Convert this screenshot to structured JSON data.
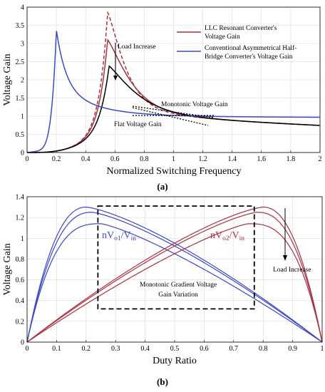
{
  "chart_data": [
    {
      "type": "line",
      "panel_label": "(a)",
      "xlabel": "Normalized Switching Frequency",
      "ylabel": "Voltage Gain",
      "xlim": [
        0,
        2
      ],
      "ylim": [
        0,
        4
      ],
      "x_ticks": [
        "0",
        "0.2",
        "0.4",
        "0.6",
        "0.8",
        "1",
        "1.2",
        "1.4",
        "1.6",
        "1.8",
        "2"
      ],
      "y_ticks": [
        "0",
        "0.5",
        "1",
        "1.5",
        "2",
        "2.5",
        "3",
        "3.5",
        "4"
      ],
      "grid": true,
      "legend_position": "top-right",
      "legend": [
        {
          "label_lines": [
            "LLC Resonant Converter's",
            "Voltage Gain"
          ],
          "color": "#a8323e"
        },
        {
          "label_lines": [
            "Conventional Asymmetrical Half-",
            "Bridge Converter's Voltage Gain"
          ],
          "color": "#3b48c8"
        }
      ],
      "series": [
        {
          "name": "LLC Resonant Converter's Voltage Gain",
          "color": "#a8323e",
          "style": "dashed",
          "peak": [
            0.55,
            3.85
          ]
        },
        {
          "name": "LLC Resonant Converter's Voltage Gain",
          "color": "#a8323e",
          "style": "solid",
          "peak": [
            0.55,
            3.1
          ]
        },
        {
          "name": "LLC Resonant Converter's Voltage Gain",
          "color": "#000000",
          "style": "solid",
          "peak": [
            0.56,
            2.38
          ]
        },
        {
          "name": "Conventional Asymmetrical Half-Bridge Converter's Voltage Gain",
          "color": "#3b48c8",
          "style": "solid",
          "peak": [
            0.2,
            3.37
          ]
        }
      ],
      "annotations": [
        {
          "text": "Load Increase",
          "x": 0.62,
          "y": 3.45
        },
        {
          "text": "Monotonic Voltage Gain",
          "x": 0.92,
          "y": 1.19
        },
        {
          "text": "Flat Voltage Gain",
          "x": 0.62,
          "y": 0.78
        }
      ]
    },
    {
      "type": "line",
      "panel_label": "(b)",
      "xlabel": "Duty Ratio",
      "ylabel": "Voltage Gain",
      "xlim": [
        0,
        1
      ],
      "ylim": [
        0,
        1.4
      ],
      "x_ticks": [
        "0",
        "0.1",
        "0.2",
        "0.3",
        "0.4",
        "0.5",
        "0.6",
        "0.7",
        "0.8",
        "0.9",
        "1"
      ],
      "y_ticks": [
        "0",
        "0.2",
        "0.4",
        "0.6",
        "0.8",
        "1",
        "1.2",
        "1.4"
      ],
      "grid": true,
      "series_groups": [
        {
          "label_main": "nV",
          "label_sub1": "o1",
          "label_slash": "/V",
          "label_sub2": "in",
          "color": "#3b48c8",
          "peaks": [
            [
              0.2,
              1.3
            ],
            [
              0.22,
              1.25
            ],
            [
              0.25,
              1.14
            ]
          ]
        },
        {
          "label_main": "nV",
          "label_sub1": "o2",
          "label_slash": "/V",
          "label_sub2": "in",
          "color": "#a8323e",
          "peaks": [
            [
              0.8,
              1.3
            ],
            [
              0.78,
              1.25
            ],
            [
              0.75,
              1.14
            ]
          ]
        }
      ],
      "annotations": [
        {
          "text": "Load Increase",
          "x": 0.83,
          "y": 0.69
        },
        {
          "text_lines": [
            "Monotonic Gradient Voltage",
            "Gain Variation"
          ],
          "x": 0.51,
          "y": 0.45
        }
      ],
      "dashed_box": {
        "x0": 0.24,
        "x1": 0.77,
        "y0": 0.32,
        "y1": 1.31
      }
    }
  ]
}
